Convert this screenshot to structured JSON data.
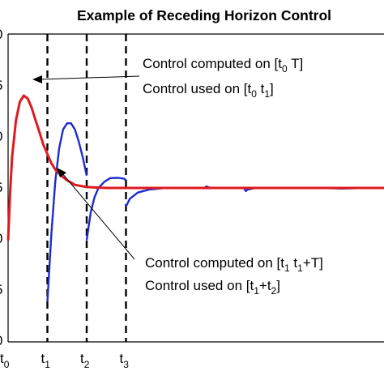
{
  "chart_data": {
    "type": "line",
    "title": "Example of Receding Horizon Control",
    "xlim": [
      0,
      12
    ],
    "ylim": [
      0,
      1
    ],
    "grid": false,
    "y_ticks_visible_partial": true,
    "x_ticks": [
      {
        "x": 0,
        "base": "t",
        "sub": "0"
      },
      {
        "x": 1,
        "base": "t",
        "sub": "1"
      },
      {
        "x": 2,
        "base": "t",
        "sub": "2"
      },
      {
        "x": 3,
        "base": "t",
        "sub": "3"
      }
    ],
    "series": [
      {
        "color": "#e0191e",
        "points": [
          [
            0,
            0.33
          ],
          [
            0.05,
            0.48
          ],
          [
            0.1,
            0.6
          ],
          [
            0.2,
            0.72
          ],
          [
            0.3,
            0.78
          ],
          [
            0.4,
            0.8
          ],
          [
            0.5,
            0.79
          ],
          [
            0.6,
            0.76
          ],
          [
            0.7,
            0.72
          ],
          [
            0.8,
            0.68
          ],
          [
            0.9,
            0.64
          ],
          [
            1.0,
            0.61
          ],
          [
            1.1,
            0.58
          ],
          [
            1.2,
            0.56
          ],
          [
            1.35,
            0.54
          ],
          [
            1.5,
            0.525
          ],
          [
            1.7,
            0.51
          ],
          [
            2.0,
            0.503
          ],
          [
            2.5,
            0.5
          ],
          [
            3,
            0.5
          ],
          [
            4,
            0.5
          ],
          [
            5,
            0.5
          ],
          [
            6,
            0.5
          ],
          [
            7,
            0.5
          ],
          [
            8,
            0.5
          ],
          [
            9,
            0.5
          ],
          [
            10,
            0.5
          ],
          [
            11,
            0.5
          ],
          [
            12,
            0.5
          ]
        ]
      },
      {
        "color": "#1c2ccf",
        "segments": [
          [
            [
              1.0,
              0.13
            ],
            [
              1.1,
              0.35
            ],
            [
              1.2,
              0.52
            ],
            [
              1.3,
              0.63
            ],
            [
              1.4,
              0.69
            ],
            [
              1.5,
              0.71
            ],
            [
              1.6,
              0.71
            ],
            [
              1.7,
              0.69
            ],
            [
              1.8,
              0.65
            ],
            [
              1.9,
              0.6
            ],
            [
              2.0,
              0.54
            ]
          ],
          [
            [
              2.0,
              0.33
            ],
            [
              2.1,
              0.42
            ],
            [
              2.2,
              0.47
            ],
            [
              2.3,
              0.5
            ],
            [
              2.45,
              0.52
            ],
            [
              2.6,
              0.532
            ],
            [
              2.8,
              0.533
            ],
            [
              2.95,
              0.53
            ],
            [
              3.0,
              0.525
            ]
          ],
          [
            [
              3.0,
              0.44
            ],
            [
              3.1,
              0.465
            ],
            [
              3.3,
              0.485
            ],
            [
              3.6,
              0.495
            ],
            [
              4.0,
              0.5
            ],
            [
              5.0,
              0.5
            ],
            [
              5.05,
              0.505
            ],
            [
              5.1,
              0.502
            ],
            [
              5.2,
              0.5
            ],
            [
              6.0,
              0.5
            ],
            [
              6.05,
              0.49
            ],
            [
              6.1,
              0.495
            ],
            [
              6.3,
              0.5
            ],
            [
              8,
              0.5
            ],
            [
              8.5,
              0.498
            ],
            [
              9,
              0.5
            ],
            [
              9.9,
              0.5
            ],
            [
              9.95,
              0.47
            ],
            [
              10.0,
              0.48
            ],
            [
              10.2,
              0.495
            ],
            [
              10.5,
              0.5
            ],
            [
              11,
              0.5
            ],
            [
              11.5,
              0.5
            ],
            [
              11.6,
              0.505
            ],
            [
              12,
              0.5
            ]
          ]
        ]
      }
    ],
    "annotations": [
      {
        "line1_a": "Control computed on [t",
        "line1_sub": "0",
        "line1_b": " T]",
        "line2_a": "Control used on [t",
        "line2_sub1": "0",
        "line2_mid": " t",
        "line2_sub2": "1",
        "line2_b": "]"
      },
      {
        "line1_a": "Control computed on [t",
        "line1_sub": "1",
        "line1_b": " t",
        "line1_sub2": "1",
        "line1_c": "+T]",
        "line2_a": "Control used on [t",
        "line2_sub1": "1",
        "line2_mid": "+t",
        "line2_sub2": "2",
        "line2_b": "]"
      }
    ]
  }
}
